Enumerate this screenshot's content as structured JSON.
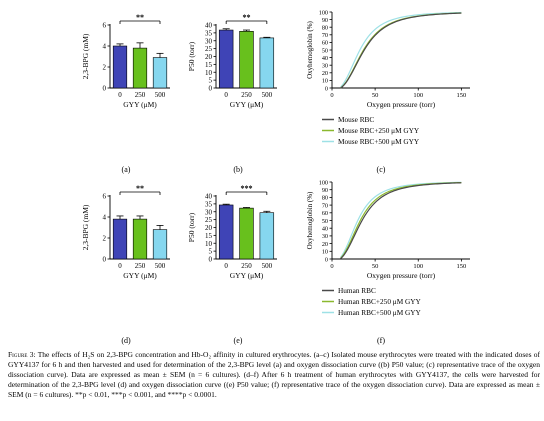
{
  "colors": {
    "g0": "#3f44b6",
    "g250": "#68c01d",
    "g500": "#86d7ef",
    "curveBase": "#4a4a4a",
    "curve250": "#8bb82e",
    "curve500": "#9ee1e6"
  },
  "labels": {
    "a": "(a)",
    "b": "(b)",
    "c": "(c)",
    "d": "(d)",
    "e": "(e)",
    "f": "(f)"
  },
  "chart_data": [
    {
      "id": "a",
      "type": "bar",
      "categories": [
        "0",
        "250",
        "500"
      ],
      "values": [
        4.0,
        3.8,
        2.9
      ],
      "errors": [
        0.2,
        0.5,
        0.4
      ],
      "ylabel": "2,3-BPG (mM)",
      "xlabel": "GYY (μM)",
      "ylim": [
        0,
        6
      ],
      "yticks": [
        0,
        2,
        4,
        6
      ],
      "significance": "**"
    },
    {
      "id": "b",
      "type": "bar",
      "categories": [
        "0",
        "250",
        "500"
      ],
      "values": [
        36.8,
        36.0,
        31.8
      ],
      "errors": [
        0.8,
        0.8,
        0.4
      ],
      "ylabel": "P50 (torr)",
      "xlabel": "GYY (μM)",
      "ylim": [
        0,
        40
      ],
      "yticks": [
        0,
        5,
        10,
        15,
        20,
        25,
        30,
        35,
        40
      ],
      "significance": "**"
    },
    {
      "id": "c",
      "type": "line",
      "xlabel": "Oxygen pressure (torr)",
      "ylabel": "Oxyhemoglobin (%)",
      "xlim": [
        0,
        160
      ],
      "ylim": [
        0,
        100
      ],
      "xticks": [
        0,
        50,
        100,
        150
      ],
      "yticks": [
        0,
        10,
        20,
        30,
        40,
        50,
        60,
        70,
        80,
        90,
        100
      ],
      "p50s": [
        36.8,
        36.0,
        31.8
      ],
      "legend": [
        "Mouse RBC",
        "Mouse RBC+250 μM GYY",
        "Mouse RBC+500 μM GYY"
      ]
    },
    {
      "id": "d",
      "type": "bar",
      "categories": [
        "0",
        "250",
        "500"
      ],
      "values": [
        3.8,
        3.8,
        2.8
      ],
      "errors": [
        0.3,
        0.3,
        0.4
      ],
      "ylabel": "2,3-BPG (mM)",
      "xlabel": "GYY (μM)",
      "ylim": [
        0,
        6
      ],
      "yticks": [
        0,
        2,
        4,
        6
      ],
      "significance": "**"
    },
    {
      "id": "e",
      "type": "bar",
      "categories": [
        "0",
        "250",
        "500"
      ],
      "values": [
        34.3,
        32.3,
        29.4
      ],
      "errors": [
        0.5,
        0.4,
        0.9
      ],
      "ylabel": "P50 (torr)",
      "xlabel": "GYY (μM)",
      "ylim": [
        0,
        40
      ],
      "yticks": [
        0,
        5,
        10,
        15,
        20,
        25,
        30,
        35,
        40
      ],
      "significance": "***"
    },
    {
      "id": "f",
      "type": "line",
      "xlabel": "Oxygen pressure (torr)",
      "ylabel": "Oxyhemoglobin (%)",
      "xlim": [
        0,
        160
      ],
      "ylim": [
        0,
        100
      ],
      "xticks": [
        0,
        50,
        100,
        150
      ],
      "yticks": [
        0,
        10,
        20,
        30,
        40,
        50,
        60,
        70,
        80,
        90,
        100
      ],
      "p50s": [
        34.3,
        32.3,
        29.4
      ],
      "legend": [
        "Human RBC",
        "Human RBC+250 μM GYY",
        "Human RBC+500 μM GYY"
      ]
    }
  ],
  "caption": {
    "lead": "Figure 3:",
    "text": "The effects of H₂S on 2,3-BPG concentration and Hb-O₂ affinity in cultured erythrocytes. (a–c) Isolated mouse erythrocytes were treated with the indicated doses of GYY4137 for 6 h and then harvested and used for determination of the 2,3-BPG level (a) and oxygen dissociation curve ((b) P50 value; (c) representative trace of the oxygen dissociation curve). Data are expressed as mean ± SEM (n = 6 cultures). (d–f) After 6 h treatment of human erythrocytes with GYY4137, the cells were harvested for determination of the 2,3-BPG level (d) and oxygen dissociation curve ((e) P50 value; (f) representative trace of the oxygen dissociation curve). Data are expressed as mean ± SEM (n = 6 cultures). **p < 0.01, ***p < 0.001, and ****p < 0.0001."
  }
}
